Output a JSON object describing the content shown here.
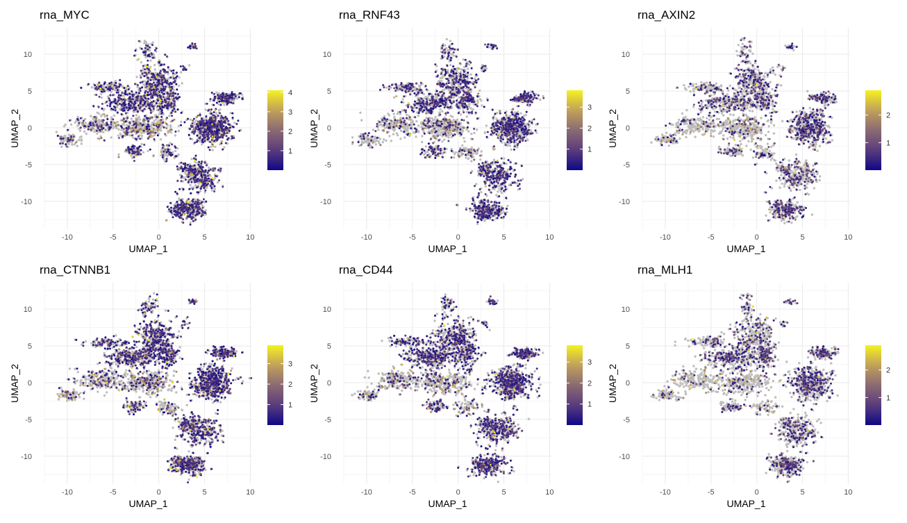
{
  "colors": {
    "background_points": "#bebebe",
    "gradient_low": "#0d0887",
    "gradient_mid_low": "#5c3c7c",
    "gradient_mid": "#8a6a72",
    "gradient_mid_high": "#c2a05c",
    "gradient_high": "#f5f21e",
    "grid_major": "#ebebeb",
    "grid_minor": "#f5f5f5"
  },
  "chart_data": [
    {
      "type": "scatter",
      "title": "rna_MYC",
      "xlabel": "UMAP_1",
      "ylabel": "UMAP_2",
      "x_ticks": [
        -10,
        -5,
        0,
        5,
        10
      ],
      "y_ticks": [
        -10,
        -5,
        0,
        5,
        10
      ],
      "xlim": [
        -12.5,
        10.2
      ],
      "ylim": [
        -13.8,
        13.6
      ],
      "grid": true,
      "color_scale": {
        "ticks": [
          1,
          2,
          3,
          4
        ],
        "min": 0,
        "max": 4.1,
        "legend_placement": "right"
      }
    },
    {
      "type": "scatter",
      "title": "rna_RNF43",
      "xlabel": "UMAP_1",
      "ylabel": "UMAP_2",
      "x_ticks": [
        -10,
        -5,
        0,
        5,
        10
      ],
      "y_ticks": [
        -10,
        -5,
        0,
        5,
        10
      ],
      "xlim": [
        -12.5,
        10.2
      ],
      "ylim": [
        -13.8,
        13.6
      ],
      "grid": true,
      "color_scale": {
        "ticks": [
          1,
          2,
          3
        ],
        "min": 0,
        "max": 3.8,
        "legend_placement": "right"
      }
    },
    {
      "type": "scatter",
      "title": "rna_AXIN2",
      "xlabel": "UMAP_1",
      "ylabel": "UMAP_2",
      "x_ticks": [
        -10,
        -5,
        0,
        5,
        10
      ],
      "y_ticks": [
        -10,
        -5,
        0,
        5,
        10
      ],
      "xlim": [
        -12.5,
        10.2
      ],
      "ylim": [
        -13.8,
        13.6
      ],
      "grid": true,
      "color_scale": {
        "ticks": [
          1,
          2
        ],
        "min": 0,
        "max": 2.9,
        "legend_placement": "right"
      }
    },
    {
      "type": "scatter",
      "title": "rna_CTNNB1",
      "xlabel": "UMAP_1",
      "ylabel": "UMAP_2",
      "x_ticks": [
        -10,
        -5,
        0,
        5,
        10
      ],
      "y_ticks": [
        -10,
        -5,
        0,
        5,
        10
      ],
      "xlim": [
        -12.5,
        10.2
      ],
      "ylim": [
        -13.8,
        13.6
      ],
      "grid": true,
      "color_scale": {
        "ticks": [
          1,
          2,
          3
        ],
        "min": 0,
        "max": 3.9,
        "legend_placement": "right"
      }
    },
    {
      "type": "scatter",
      "title": "rna_CD44",
      "xlabel": "UMAP_1",
      "ylabel": "UMAP_2",
      "x_ticks": [
        -10,
        -5,
        0,
        5,
        10
      ],
      "y_ticks": [
        -10,
        -5,
        0,
        5,
        10
      ],
      "xlim": [
        -12.5,
        10.2
      ],
      "ylim": [
        -13.8,
        13.6
      ],
      "grid": true,
      "color_scale": {
        "ticks": [
          1,
          2,
          3
        ],
        "min": 0,
        "max": 3.8,
        "legend_placement": "right"
      }
    },
    {
      "type": "scatter",
      "title": "rna_MLH1",
      "xlabel": "UMAP_1",
      "ylabel": "UMAP_2",
      "x_ticks": [
        -10,
        -5,
        0,
        5,
        10
      ],
      "y_ticks": [
        -10,
        -5,
        0,
        5,
        10
      ],
      "xlim": [
        -12.5,
        10.2
      ],
      "ylim": [
        -13.8,
        13.6
      ],
      "grid": true,
      "color_scale": {
        "ticks": [
          1,
          2
        ],
        "min": 0,
        "max": 2.9,
        "legend_placement": "right"
      }
    }
  ]
}
